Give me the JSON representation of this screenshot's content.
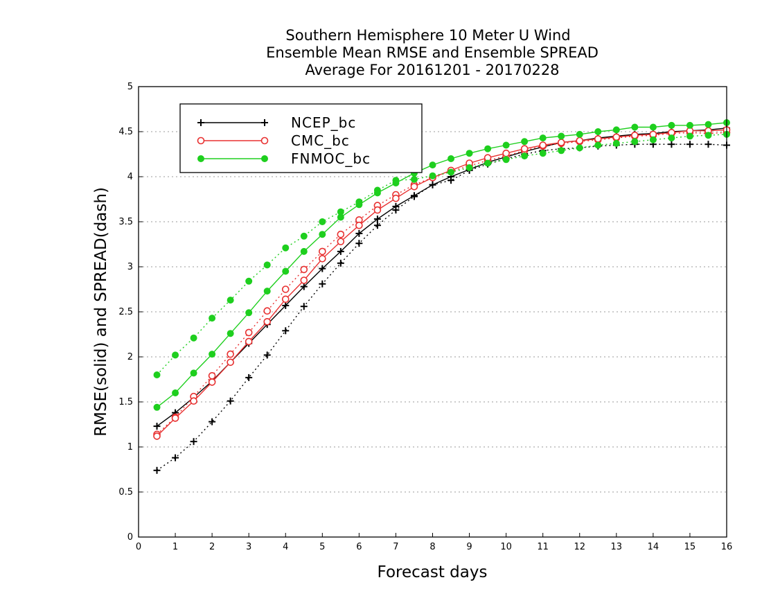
{
  "chart_data": {
    "type": "line",
    "title": [
      "Southern Hemisphere 10 Meter U Wind",
      "Ensemble Mean RMSE and Ensemble SPREAD",
      "Average For 20161201 - 20170228"
    ],
    "xlabel": "Forecast days",
    "ylabel": "RMSE(solid) and SPREAD(dash)",
    "xlim": [
      0,
      16
    ],
    "ylim": [
      0,
      5
    ],
    "xticks": [
      0,
      1,
      2,
      3,
      4,
      5,
      6,
      7,
      8,
      9,
      10,
      11,
      12,
      13,
      14,
      15,
      16
    ],
    "yticks": [
      0,
      0.5,
      1,
      1.5,
      2,
      2.5,
      3,
      3.5,
      4,
      4.5,
      5
    ],
    "ytick_labels": [
      "0",
      "0.5",
      "1",
      "1.5",
      "2",
      "2.5",
      "3",
      "3.5",
      "4",
      "4.5",
      "5"
    ],
    "grid": true,
    "legend_position": "top-left",
    "x": [
      0.5,
      1,
      1.5,
      2,
      2.5,
      3,
      3.5,
      4,
      4.5,
      5,
      5.5,
      6,
      6.5,
      7,
      7.5,
      8,
      8.5,
      9,
      9.5,
      10,
      10.5,
      11,
      11.5,
      12,
      12.5,
      13,
      13.5,
      14,
      14.5,
      15,
      15.5,
      16
    ],
    "series": [
      {
        "name": "NCEP_bc",
        "color": "#000000",
        "marker": "plus",
        "rmse": [
          1.23,
          1.38,
          1.55,
          1.73,
          1.94,
          2.15,
          2.36,
          2.57,
          2.78,
          2.98,
          3.17,
          3.37,
          3.53,
          3.67,
          3.79,
          3.91,
          4.0,
          4.08,
          4.16,
          4.22,
          4.28,
          4.33,
          4.38,
          4.4,
          4.43,
          4.45,
          4.47,
          4.48,
          4.5,
          4.51,
          4.52,
          4.54
        ],
        "spread": [
          0.74,
          0.88,
          1.06,
          1.28,
          1.51,
          1.77,
          2.02,
          2.29,
          2.56,
          2.81,
          3.04,
          3.26,
          3.46,
          3.63,
          3.78,
          3.91,
          3.96,
          4.07,
          4.14,
          4.2,
          4.25,
          4.29,
          4.31,
          4.32,
          4.34,
          4.35,
          4.36,
          4.36,
          4.36,
          4.36,
          4.36,
          4.35
        ]
      },
      {
        "name": "CMC_bc",
        "color": "#e83030",
        "marker": "open-circle",
        "rmse": [
          1.12,
          1.32,
          1.51,
          1.72,
          1.94,
          2.17,
          2.39,
          2.64,
          2.85,
          3.09,
          3.28,
          3.46,
          3.63,
          3.76,
          3.89,
          3.99,
          4.07,
          4.15,
          4.21,
          4.26,
          4.31,
          4.35,
          4.38,
          4.4,
          4.42,
          4.44,
          4.46,
          4.47,
          4.49,
          4.51,
          4.51,
          4.52
        ],
        "spread": [
          1.14,
          1.33,
          1.56,
          1.79,
          2.03,
          2.27,
          2.51,
          2.75,
          2.97,
          3.17,
          3.36,
          3.52,
          3.68,
          3.8,
          3.91,
          3.99,
          4.06,
          4.12,
          4.18,
          4.23,
          4.29,
          4.34,
          4.37,
          4.39,
          4.41,
          4.43,
          4.45,
          4.46,
          4.48,
          4.49,
          4.48,
          4.49
        ]
      },
      {
        "name": "FNMOC_bc",
        "color": "#1ecf1e",
        "marker": "filled-circle",
        "rmse": [
          1.44,
          1.6,
          1.82,
          2.03,
          2.26,
          2.49,
          2.73,
          2.95,
          3.17,
          3.36,
          3.55,
          3.69,
          3.82,
          3.93,
          4.04,
          4.13,
          4.2,
          4.26,
          4.31,
          4.35,
          4.39,
          4.43,
          4.45,
          4.47,
          4.5,
          4.52,
          4.55,
          4.55,
          4.57,
          4.57,
          4.58,
          4.6
        ],
        "spread": [
          1.8,
          2.02,
          2.21,
          2.43,
          2.63,
          2.84,
          3.02,
          3.21,
          3.34,
          3.5,
          3.61,
          3.72,
          3.85,
          3.96,
          3.97,
          4.01,
          4.05,
          4.1,
          4.15,
          4.19,
          4.23,
          4.26,
          4.29,
          4.32,
          4.35,
          4.37,
          4.39,
          4.41,
          4.43,
          4.45,
          4.46,
          4.47
        ]
      }
    ]
  }
}
